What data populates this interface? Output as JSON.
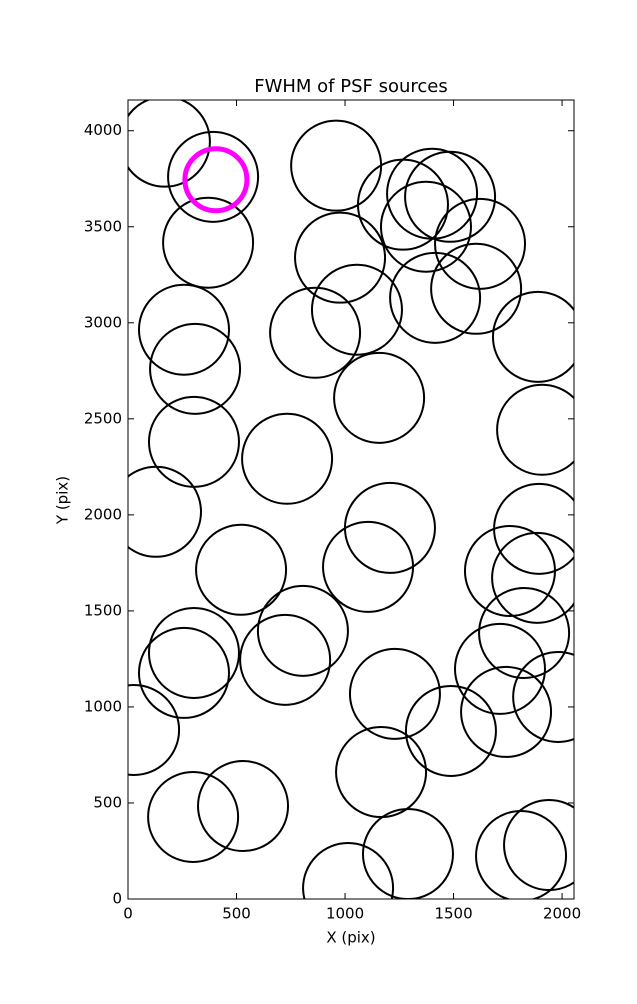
{
  "chart_data": {
    "type": "scatter",
    "title": "FWHM of PSF sources",
    "xlabel": "X (pix)",
    "ylabel": "Y (pix)",
    "xlim": [
      0,
      2055
    ],
    "ylim": [
      0,
      4160
    ],
    "xticks": [
      0,
      500,
      1000,
      1500,
      2000
    ],
    "yticks": [
      0,
      500,
      1000,
      1500,
      2000,
      2500,
      3000,
      3500,
      4000
    ],
    "series": [
      {
        "color": "#000000",
        "x": [
          170,
          392,
          369,
          959,
          1267,
          1401,
          1484,
          1373,
          1622,
          977,
          1415,
          1604,
          1055,
          1889,
          258,
          862,
          309,
          1157,
          1908,
          304,
          733,
          129,
          1894,
          1207,
          1106,
          521,
          1760,
          1885,
          806,
          1825,
          304,
          258,
          724,
          1714,
          1982,
          1230,
          28,
          1488,
          1742,
          1166,
          530,
          300,
          1290,
          1014,
          1811,
          1940
        ],
        "values": [
          3943,
          3760,
          3417,
          3818,
          3615,
          3672,
          3656,
          3500,
          3411,
          3339,
          3130,
          3177,
          3068,
          2927,
          2964,
          2948,
          2760,
          2609,
          2443,
          2380,
          2292,
          2016,
          1927,
          1932,
          1729,
          1714,
          1708,
          1672,
          1396,
          1385,
          1281,
          1177,
          1245,
          1198,
          1052,
          1068,
          880,
          875,
          974,
          661,
          484,
          427,
          234,
          57,
          224,
          281
        ]
      },
      {
        "color": "#ff00ff",
        "x": [
          405
        ],
        "values": [
          3745
        ]
      }
    ]
  }
}
